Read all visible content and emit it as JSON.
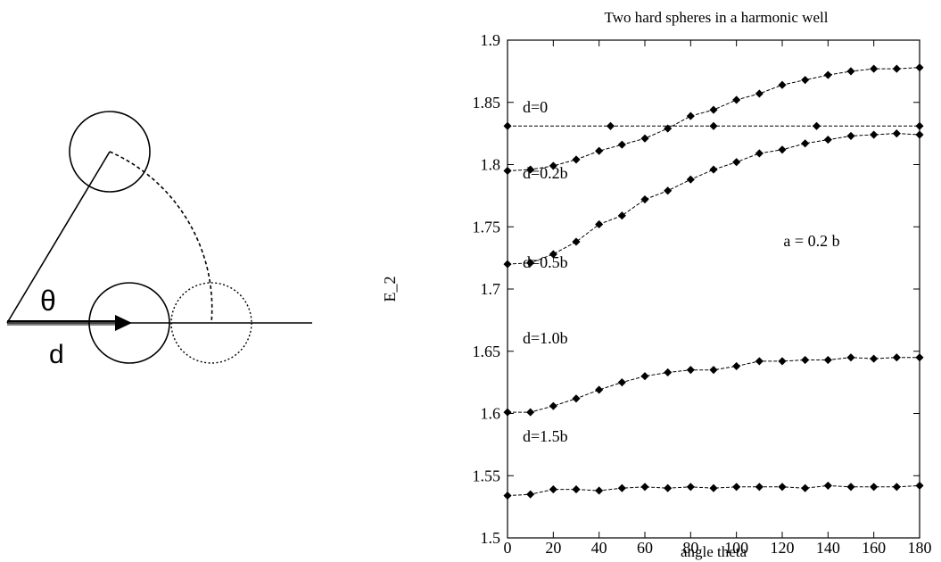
{
  "diagram": {
    "angle_label": "θ",
    "distance_label": "d"
  },
  "chart_data": {
    "type": "line",
    "title": "Two hard spheres in a harmonic well",
    "xlabel": "angle theta",
    "ylabel": "E_2",
    "xlim": [
      0,
      180
    ],
    "ylim": [
      1.5,
      1.9
    ],
    "xticks": [
      0,
      20,
      40,
      60,
      80,
      100,
      120,
      140,
      160,
      180
    ],
    "yticks": [
      1.5,
      1.55,
      1.6,
      1.65,
      1.7,
      1.75,
      1.8,
      1.85,
      1.9
    ],
    "grid": false,
    "annotation": "a = 0.2 b",
    "line_color": "#000000",
    "series": [
      {
        "name": "d=0",
        "x": [
          0,
          45,
          90,
          135,
          180
        ],
        "values": [
          1.831,
          1.831,
          1.831,
          1.831,
          1.831
        ]
      },
      {
        "name": "d=0.2b",
        "x": [
          0,
          10,
          20,
          30,
          40,
          50,
          60,
          70,
          80,
          90,
          100,
          110,
          120,
          130,
          140,
          150,
          160,
          170,
          180
        ],
        "values": [
          1.795,
          1.796,
          1.799,
          1.804,
          1.811,
          1.816,
          1.821,
          1.829,
          1.839,
          1.844,
          1.852,
          1.857,
          1.864,
          1.868,
          1.872,
          1.875,
          1.877,
          1.877,
          1.878
        ]
      },
      {
        "name": "d=0.5b",
        "x": [
          0,
          10,
          20,
          30,
          40,
          50,
          60,
          70,
          80,
          90,
          100,
          110,
          120,
          130,
          140,
          150,
          160,
          170,
          180
        ],
        "values": [
          1.72,
          1.721,
          1.728,
          1.738,
          1.752,
          1.759,
          1.772,
          1.779,
          1.788,
          1.796,
          1.802,
          1.809,
          1.812,
          1.817,
          1.82,
          1.823,
          1.824,
          1.825,
          1.824
        ]
      },
      {
        "name": "d=1.0b",
        "x": [
          0,
          10,
          20,
          30,
          40,
          50,
          60,
          70,
          80,
          90,
          100,
          110,
          120,
          130,
          140,
          150,
          160,
          170,
          180
        ],
        "values": [
          1.601,
          1.601,
          1.606,
          1.612,
          1.619,
          1.625,
          1.63,
          1.633,
          1.635,
          1.635,
          1.638,
          1.642,
          1.642,
          1.643,
          1.643,
          1.645,
          1.644,
          1.645,
          1.645
        ]
      },
      {
        "name": "d=1.5b",
        "x": [
          0,
          10,
          20,
          30,
          40,
          50,
          60,
          70,
          80,
          90,
          100,
          110,
          120,
          130,
          140,
          150,
          160,
          170,
          180
        ],
        "values": [
          1.534,
          1.535,
          1.539,
          1.539,
          1.538,
          1.54,
          1.541,
          1.54,
          1.541,
          1.54,
          1.541,
          1.541,
          1.541,
          1.54,
          1.542,
          1.541,
          1.541,
          1.541,
          1.542
        ]
      }
    ]
  }
}
